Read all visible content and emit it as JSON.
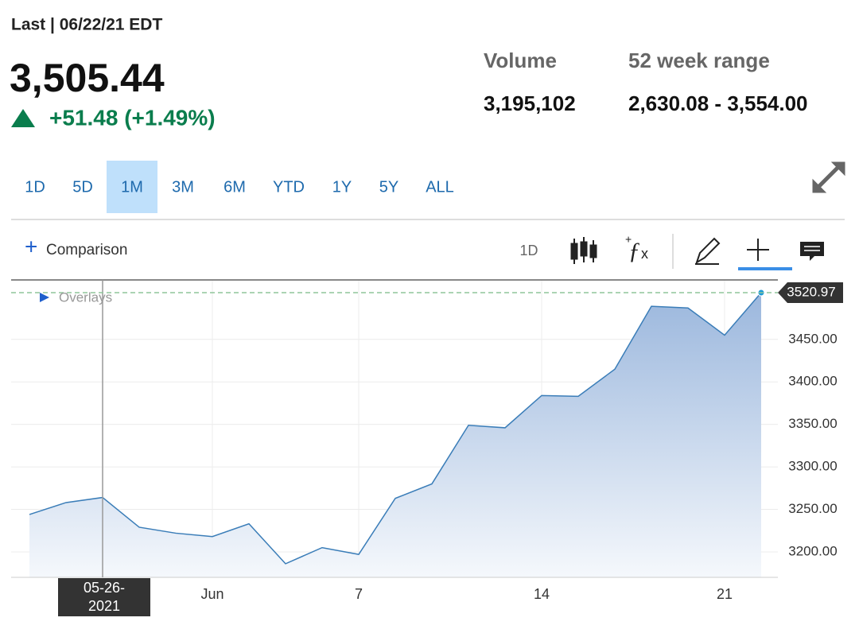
{
  "header": {
    "last_label": "Last | 06/22/21 EDT",
    "price": "3,505.44",
    "change": "+51.48 (+1.49%)",
    "stats": [
      {
        "label": "Volume",
        "value": "3,195,102"
      },
      {
        "label": "52 week range",
        "value": "2,630.08 - 3,554.00"
      }
    ]
  },
  "range_tabs": {
    "items": [
      "1D",
      "5D",
      "1M",
      "3M",
      "6M",
      "YTD",
      "1Y",
      "5Y",
      "ALL"
    ],
    "selected": "1M"
  },
  "toolbar": {
    "comparison": "Comparison",
    "interval": "1D"
  },
  "chart_data": {
    "type": "area",
    "overlays_label": "Overlays",
    "categories": [
      null,
      null,
      null,
      null,
      null,
      "Jun",
      null,
      null,
      null,
      "7",
      null,
      null,
      null,
      null,
      "14",
      null,
      null,
      null,
      null,
      "21",
      null
    ],
    "values": [
      3244,
      3258,
      3264,
      3229,
      3222,
      3218,
      3233,
      3186,
      3205,
      3197,
      3263,
      3280,
      3349,
      3346,
      3384,
      3383,
      3415,
      3489,
      3487,
      3455,
      3505
    ],
    "color": "#3a7db8",
    "ylim": [
      3170,
      3520
    ],
    "yticks": [
      {
        "value": 3200,
        "label": "3200.00"
      },
      {
        "value": 3250,
        "label": "3250.00"
      },
      {
        "value": 3300,
        "label": "3300.00"
      },
      {
        "value": 3350,
        "label": "3350.00"
      },
      {
        "value": 3400,
        "label": "3400.00"
      },
      {
        "value": 3450,
        "label": "3450.00"
      }
    ],
    "grid": true,
    "crosshair": {
      "x_label": "05-26-2021",
      "y_label": "3520.97"
    }
  }
}
